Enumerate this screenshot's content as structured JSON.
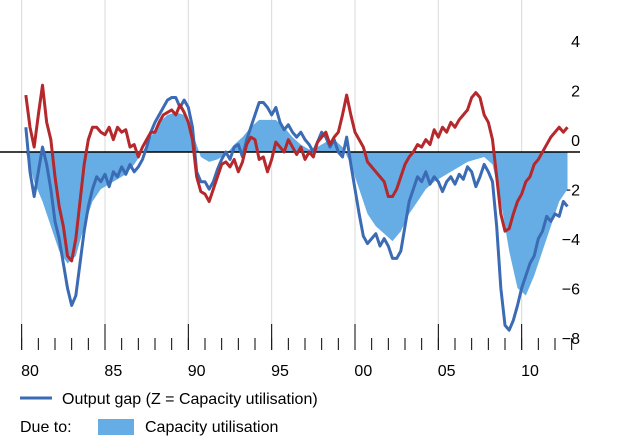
{
  "chart_data": {
    "type": "line",
    "x": [
      1980.25,
      1980.5,
      1980.75,
      1981,
      1981.25,
      1981.5,
      1981.75,
      1982,
      1982.25,
      1982.5,
      1982.75,
      1983,
      1983.25,
      1983.5,
      1983.75,
      1984,
      1984.25,
      1984.5,
      1984.75,
      1985,
      1985.25,
      1985.5,
      1985.75,
      1986,
      1986.25,
      1986.5,
      1986.75,
      1987,
      1987.25,
      1987.5,
      1987.75,
      1988,
      1988.25,
      1988.5,
      1988.75,
      1989,
      1989.25,
      1989.5,
      1989.75,
      1990,
      1990.25,
      1990.5,
      1990.75,
      1991,
      1991.25,
      1991.5,
      1991.75,
      1992,
      1992.25,
      1992.5,
      1992.75,
      1993,
      1993.25,
      1993.5,
      1993.75,
      1994,
      1994.25,
      1994.5,
      1994.75,
      1995,
      1995.25,
      1995.5,
      1995.75,
      1996,
      1996.25,
      1996.5,
      1996.75,
      1997,
      1997.25,
      1997.5,
      1997.75,
      1998,
      1998.25,
      1998.5,
      1998.75,
      1999,
      1999.25,
      1999.5,
      1999.75,
      2000,
      2000.25,
      2000.5,
      2000.75,
      2001,
      2001.25,
      2001.5,
      2001.75,
      2002,
      2002.25,
      2002.5,
      2002.75,
      2003,
      2003.25,
      2003.5,
      2003.75,
      2004,
      2004.25,
      2004.5,
      2004.75,
      2005,
      2005.25,
      2005.5,
      2005.75,
      2006,
      2006.25,
      2006.5,
      2006.75,
      2007,
      2007.25,
      2007.5,
      2007.75,
      2008,
      2008.25,
      2008.5,
      2008.75,
      2009,
      2009.25,
      2009.5,
      2009.75,
      2010,
      2010.25,
      2010.5,
      2010.75,
      2011,
      2011.25,
      2011.5,
      2011.75,
      2012,
      2012.25,
      2012.5,
      2012.75
    ],
    "series": [
      {
        "name": "Capacity utilisation",
        "type": "area",
        "color": "#66ade6",
        "x": [
          1980.25,
          1980.75,
          1981.25,
          1981.75,
          1982.25,
          1982.75,
          1983.25,
          1983.75,
          1984.25,
          1984.75,
          1985.25,
          1985.75,
          1986.25,
          1986.75,
          1987.25,
          1987.75,
          1988.25,
          1988.75,
          1989.25,
          1989.75,
          1990.25,
          1990.75,
          1991.25,
          1991.75,
          1992.25,
          1992.75,
          1993.25,
          1993.75,
          1994.25,
          1994.75,
          1995.25,
          1995.75,
          1996.25,
          1996.75,
          1997.25,
          1997.75,
          1998.25,
          1998.75,
          1999.25,
          1999.75,
          2000.25,
          2000.75,
          2001.25,
          2001.75,
          2002.25,
          2002.75,
          2003.25,
          2003.75,
          2004.25,
          2004.75,
          2005.25,
          2005.75,
          2006.25,
          2006.75,
          2007.25,
          2007.75,
          2008.25,
          2008.75,
          2009.25,
          2009.75,
          2010.25,
          2010.75,
          2011.25,
          2011.75,
          2012.25,
          2012.75
        ],
        "values": [
          0,
          -1.2,
          -2.0,
          -3.0,
          -4.0,
          -4.5,
          -4.2,
          -3.0,
          -2.0,
          -1.5,
          -1.3,
          -1.1,
          -0.9,
          -0.5,
          0.0,
          0.6,
          1.2,
          1.5,
          1.6,
          1.5,
          0.8,
          -0.2,
          -0.4,
          -0.3,
          -0.1,
          0.3,
          0.6,
          1.0,
          1.3,
          1.3,
          1.3,
          1.0,
          0.6,
          0.3,
          0.1,
          0.2,
          0.4,
          0.5,
          0.2,
          -0.5,
          -1.5,
          -2.5,
          -3.0,
          -3.3,
          -3.6,
          -3.2,
          -2.5,
          -2.0,
          -1.5,
          -1.2,
          -1.0,
          -0.8,
          -0.6,
          -0.4,
          -0.3,
          -0.2,
          -0.5,
          -2.0,
          -4.0,
          -5.5,
          -5.8,
          -5.0,
          -4.0,
          -3.0,
          -2.0,
          -1.5
        ]
      },
      {
        "name": "Output gap (Z = Capacity utilisation)",
        "type": "line",
        "color": "#3b6bb4",
        "values": [
          1.0,
          -0.8,
          -1.8,
          -0.8,
          0.2,
          -0.5,
          -1.5,
          -2.8,
          -3.5,
          -4.5,
          -5.5,
          -6.2,
          -5.8,
          -4.5,
          -3.2,
          -2.2,
          -1.5,
          -1.0,
          -1.2,
          -0.9,
          -1.4,
          -0.8,
          -1.0,
          -0.6,
          -0.9,
          -0.5,
          -0.8,
          -0.6,
          -0.3,
          0.2,
          0.8,
          1.2,
          1.5,
          1.8,
          2.1,
          2.2,
          2.2,
          1.8,
          2.1,
          1.8,
          1.0,
          -0.8,
          -1.2,
          -1.2,
          -1.5,
          -1.2,
          -0.7,
          -0.3,
          0.0,
          -0.3,
          0.2,
          0.3,
          -0.2,
          0.5,
          1.0,
          1.5,
          2.0,
          2.0,
          1.8,
          1.5,
          1.8,
          1.2,
          0.9,
          1.1,
          0.8,
          0.6,
          0.8,
          0.5,
          0.3,
          0.0,
          0.4,
          0.8,
          0.6,
          0.2,
          0.5,
          0.0,
          -0.2,
          0.6,
          -0.5,
          -1.5,
          -2.5,
          -3.4,
          -3.7,
          -3.5,
          -3.3,
          -3.8,
          -3.5,
          -3.8,
          -4.3,
          -4.3,
          -4.0,
          -3.0,
          -2.0,
          -1.5,
          -1.0,
          -1.2,
          -0.8,
          -1.3,
          -1.0,
          -1.2,
          -1.6,
          -1.2,
          -1.0,
          -1.3,
          -0.9,
          -1.1,
          -0.6,
          -0.8,
          -1.4,
          -1.0,
          -0.5,
          -0.8,
          -1.2,
          -3.0,
          -5.5,
          -7.0,
          -7.2,
          -6.8,
          -6.2,
          -5.5,
          -5.0,
          -4.5,
          -4.2,
          -3.5,
          -3.2,
          -2.6,
          -2.8,
          -2.5,
          -2.6,
          -2.0,
          -2.2
        ]
      },
      {
        "type": "line",
        "color": "#b5282b",
        "values": [
          2.3,
          1.0,
          0.2,
          1.5,
          2.7,
          1.2,
          0.5,
          -1.0,
          -2.2,
          -3.0,
          -4.2,
          -4.4,
          -3.5,
          -2.0,
          -0.5,
          0.5,
          1.0,
          1.0,
          0.8,
          0.7,
          1.0,
          0.5,
          1.0,
          0.8,
          0.9,
          0.2,
          0.3,
          -0.2,
          0.2,
          0.5,
          0.8,
          0.8,
          1.2,
          1.5,
          1.6,
          1.7,
          1.5,
          1.9,
          1.6,
          1.2,
          0.5,
          -1.0,
          -1.6,
          -1.7,
          -2.0,
          -1.5,
          -1.0,
          -0.5,
          -0.4,
          -0.6,
          -0.3,
          -0.8,
          -0.4,
          0.3,
          0.6,
          0.5,
          -0.3,
          -0.2,
          -0.8,
          -0.3,
          0.4,
          0.2,
          0.0,
          0.5,
          0.2,
          -0.1,
          0.2,
          -0.3,
          0.0,
          -0.2,
          0.4,
          0.6,
          0.8,
          0.3,
          0.6,
          0.8,
          1.5,
          2.3,
          1.5,
          0.8,
          0.5,
          0.2,
          -0.4,
          -0.6,
          -0.8,
          -1.0,
          -1.2,
          -1.8,
          -1.8,
          -1.5,
          -1.0,
          -0.5,
          -0.2,
          0.0,
          0.3,
          0.2,
          0.5,
          0.3,
          0.9,
          0.6,
          1.0,
          0.8,
          1.2,
          1.0,
          1.3,
          1.5,
          1.7,
          2.2,
          2.4,
          2.2,
          1.5,
          1.2,
          0.5,
          -1.0,
          -2.5,
          -3.2,
          -3.1,
          -2.5,
          -2.0,
          -1.7,
          -1.2,
          -1.0,
          -0.5,
          -0.3,
          0.0,
          0.3,
          0.6,
          0.8,
          1.0,
          0.8,
          1.0
        ]
      }
    ],
    "legend_note": "Due to:",
    "xlim": [
      1979.3,
      2013.5
    ],
    "xticks": [
      {
        "value": 1980,
        "label": "80"
      },
      {
        "value": 1985,
        "label": "85"
      },
      {
        "value": 1990,
        "label": "90"
      },
      {
        "value": 1995,
        "label": "95"
      },
      {
        "value": 2000,
        "label": "00"
      },
      {
        "value": 2005,
        "label": "05"
      },
      {
        "value": 2010,
        "label": "10"
      }
    ],
    "ylim": [
      -8,
      6
    ],
    "yticks": [
      4,
      2,
      0,
      {
        "value": -2,
        "label": "−2"
      },
      {
        "value": -4,
        "label": "−4"
      },
      {
        "value": -6,
        "label": "−6"
      },
      {
        "value": -8,
        "label": "−8"
      }
    ],
    "grid": true
  }
}
